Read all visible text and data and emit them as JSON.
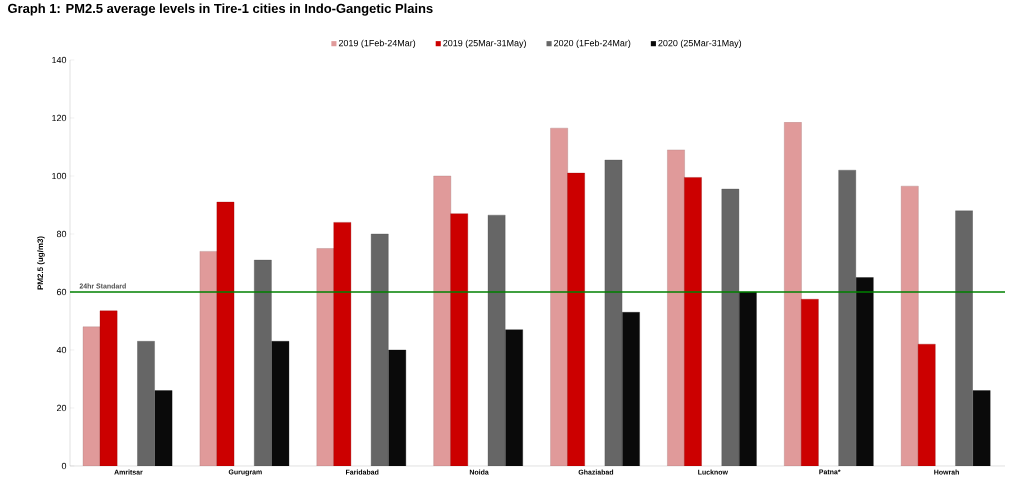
{
  "chart_data": {
    "type": "bar",
    "title": "Graph 1: PM2.5 average levels in Tire-1 cities in Indo-Gangetic Plains",
    "ylabel": "PM2.5 (ug/m3)",
    "categories": [
      "Amritsar",
      "Gurugram",
      "Faridabad",
      "Noida",
      "Ghaziabad",
      "Lucknow",
      "Patna*",
      "Howrah"
    ],
    "series": [
      {
        "name": "2019 (1Feb-24Mar)",
        "color": "#e09a9a",
        "values": [
          48,
          74,
          75,
          100,
          116.5,
          109,
          118.5,
          96.5
        ]
      },
      {
        "name": "2019 (25Mar-31May)",
        "color": "#cc0000",
        "values": [
          53.5,
          91,
          84,
          87,
          101,
          99.5,
          57.5,
          42
        ]
      },
      {
        "name": "2020 (1Feb-24Mar)",
        "color": "#666666",
        "values": [
          43,
          71,
          80,
          86.5,
          105.5,
          95.5,
          102,
          88
        ]
      },
      {
        "name": "2020 (25Mar-31May)",
        "color": "#0a0a0a",
        "values": [
          26,
          43,
          40,
          47,
          53,
          60,
          65,
          26
        ]
      }
    ],
    "ylim": [
      0,
      140
    ],
    "yticks": [
      0,
      20,
      40,
      60,
      80,
      100,
      120,
      140
    ],
    "ref_lines": [
      {
        "axis": "y",
        "value": 60,
        "label": "24hr Standard",
        "color": "#008000"
      }
    ],
    "legend": "top",
    "grid": false
  }
}
